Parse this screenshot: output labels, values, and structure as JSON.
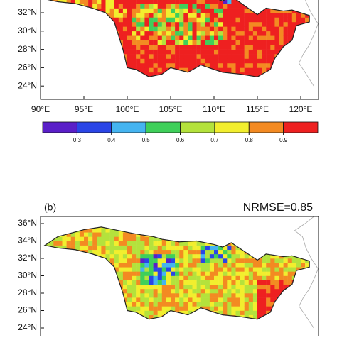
{
  "panels": [
    {
      "lat_labels": [
        "32°N",
        "30°N",
        "28°N",
        "26°N",
        "24°N"
      ],
      "lon_labels": [
        "90°E",
        "95°E",
        "100°E",
        "105°E",
        "110°E",
        "115°E",
        "120°E"
      ]
    },
    {
      "label": "(b)",
      "metric": "NRMSE=0.85",
      "lat_labels": [
        "36°N",
        "34°N",
        "32°N",
        "30°N",
        "28°N",
        "26°N",
        "24°N"
      ]
    }
  ],
  "colorbar": {
    "ticks": [
      0.3,
      0.4,
      0.5,
      0.6,
      0.7,
      0.8,
      0.9
    ],
    "colors": [
      "#5a1fc8",
      "#2a45e6",
      "#45b4f0",
      "#3fcf5a",
      "#b4e23c",
      "#f2ee2e",
      "#f38a22",
      "#ee2020"
    ]
  }
}
